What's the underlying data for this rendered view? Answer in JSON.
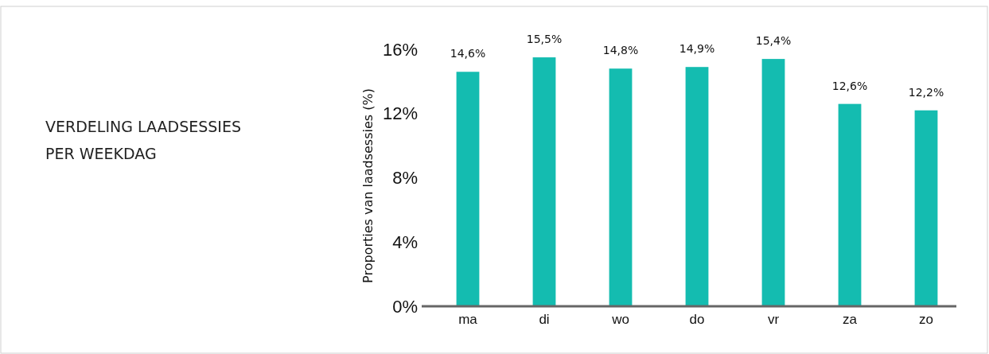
{
  "chart_data": {
    "type": "bar",
    "title": "VERDELING LAADSESSIES PER WEEKDAG",
    "ylabel": "Proporties van laadsessies (%)",
    "categories": [
      "ma",
      "di",
      "wo",
      "do",
      "vr",
      "za",
      "zo"
    ],
    "values": [
      14.6,
      15.5,
      14.8,
      14.9,
      15.4,
      12.6,
      12.2
    ],
    "value_labels": [
      "14,6%",
      "15,5%",
      "14,8%",
      "14,9%",
      "15,4%",
      "12,6%",
      "12,2%"
    ],
    "color": "#14bcb0",
    "ylim": [
      0,
      16
    ],
    "yticks": [
      {
        "value": 0,
        "label": "0%"
      },
      {
        "value": 4,
        "label": "4%"
      },
      {
        "value": 8,
        "label": "8%"
      },
      {
        "value": 12,
        "label": "12%"
      },
      {
        "value": 16,
        "label": "16%"
      }
    ],
    "grid": false
  }
}
